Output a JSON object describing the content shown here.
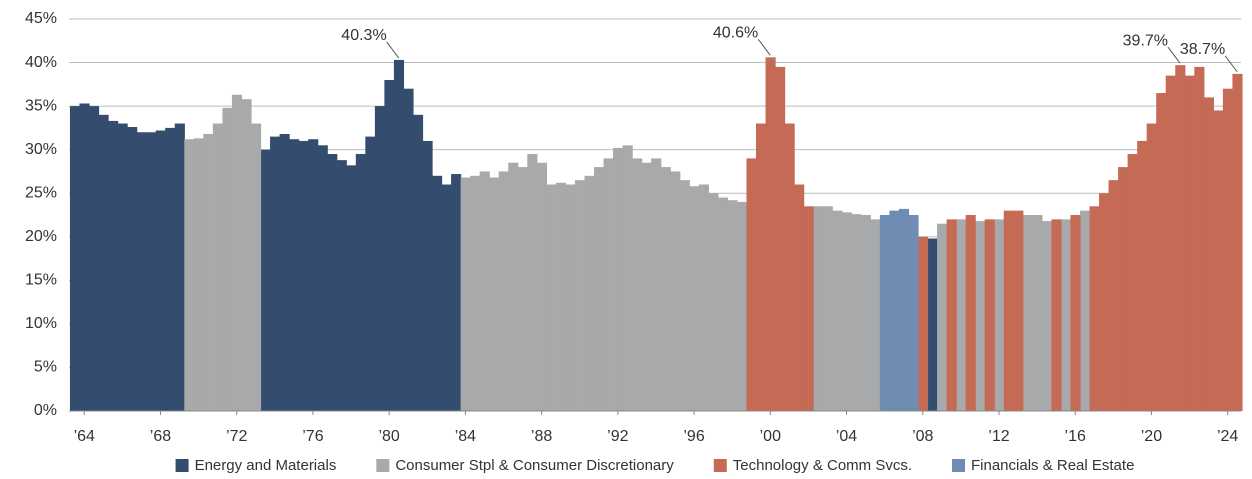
{
  "chart_data": {
    "type": "bar",
    "x": [
      1963.5,
      1964,
      1964.5,
      1965,
      1965.5,
      1966,
      1966.5,
      1967,
      1967.5,
      1968,
      1968.5,
      1969,
      1969.5,
      1970,
      1970.5,
      1971,
      1971.5,
      1972,
      1972.5,
      1973,
      1973.5,
      1974,
      1974.5,
      1975,
      1975.5,
      1976,
      1976.5,
      1977,
      1977.5,
      1978,
      1978.5,
      1979,
      1979.5,
      1980,
      1980.5,
      1981,
      1981.5,
      1982,
      1982.5,
      1983,
      1983.5,
      1984,
      1984.5,
      1985,
      1985.5,
      1986,
      1986.5,
      1987,
      1987.5,
      1988,
      1988.5,
      1989,
      1989.5,
      1990,
      1990.5,
      1991,
      1991.5,
      1992,
      1992.5,
      1993,
      1993.5,
      1994,
      1994.5,
      1995,
      1995.5,
      1996,
      1996.5,
      1997,
      1997.5,
      1998,
      1998.5,
      1999,
      1999.5,
      2000,
      2000.5,
      2001,
      2001.5,
      2002,
      2002.5,
      2003,
      2003.5,
      2004,
      2004.5,
      2005,
      2005.5,
      2006,
      2006.5,
      2007,
      2007.5,
      2008,
      2008.5,
      2009,
      2009.5,
      2010,
      2010.5,
      2011,
      2011.5,
      2012,
      2012.5,
      2013,
      2013.5,
      2014,
      2014.5,
      2015,
      2015.5,
      2016,
      2016.5,
      2017,
      2017.5,
      2018,
      2018.5,
      2019,
      2019.5,
      2020,
      2020.5,
      2021,
      2021.5,
      2022,
      2022.5,
      2023,
      2023.5,
      2024,
      2024.5
    ],
    "series": [
      {
        "name": "Energy and Materials",
        "color": "#344d6e",
        "values": [
          35,
          35.3,
          35,
          34,
          33.3,
          33,
          32.6,
          32,
          32,
          32.2,
          32.5,
          33,
          null,
          null,
          null,
          null,
          null,
          null,
          null,
          null,
          30,
          31.5,
          31.8,
          31.2,
          31,
          31.2,
          30.5,
          29.5,
          28.8,
          28.2,
          29.5,
          31.5,
          35,
          38,
          40.3,
          37,
          34,
          31,
          27,
          26,
          27.2,
          null,
          null,
          null,
          null,
          null,
          null,
          null,
          null,
          null,
          null,
          null,
          null,
          null,
          null,
          null,
          null,
          null,
          null,
          null,
          null,
          null,
          null,
          null,
          null,
          null,
          null,
          null,
          null,
          null,
          null,
          null,
          null,
          null,
          null,
          null,
          null,
          null,
          null,
          null,
          null,
          null,
          null,
          null,
          null,
          null,
          null,
          null,
          null,
          null,
          19.8,
          null,
          null,
          null,
          null,
          null,
          null,
          null,
          null,
          null,
          null,
          null,
          null,
          null,
          null,
          null,
          null,
          null,
          null,
          null,
          null,
          null,
          null,
          null,
          null,
          null,
          null,
          null,
          null,
          null,
          null,
          null,
          null
        ],
        "value_labels": [
          null,
          null,
          null,
          null,
          null,
          null,
          null,
          null,
          null,
          null,
          null,
          null,
          null,
          null,
          null,
          null,
          null,
          null,
          null,
          null,
          null,
          null,
          null,
          null,
          null,
          null,
          null,
          null,
          null,
          null,
          null,
          null,
          null,
          null,
          "40.3%",
          null,
          null,
          null,
          null,
          null,
          null,
          null,
          null,
          null,
          null,
          null,
          null,
          null,
          null,
          null,
          null,
          null,
          null,
          null,
          null,
          null,
          null,
          null,
          null,
          null,
          null,
          null,
          null,
          null,
          null,
          null,
          null,
          null,
          null,
          null,
          null,
          null,
          null,
          null,
          null,
          null,
          null,
          null,
          null,
          null,
          null,
          null,
          null,
          null,
          null,
          null,
          null,
          null,
          null,
          null,
          null,
          null,
          null,
          null,
          null,
          null,
          null,
          null,
          null,
          null,
          null,
          null,
          null,
          null,
          null,
          null,
          null,
          null,
          null,
          null,
          null,
          null,
          null,
          null,
          null,
          null,
          null,
          null,
          null,
          null,
          null,
          null,
          null
        ]
      },
      {
        "name": "Consumer Stpl & Consumer Discretionary",
        "color": "#a8a9ab",
        "values": [
          null,
          null,
          null,
          null,
          null,
          null,
          null,
          null,
          null,
          null,
          null,
          null,
          31.2,
          31.3,
          31.8,
          33,
          34.8,
          36.3,
          35.8,
          33,
          null,
          null,
          null,
          null,
          null,
          null,
          null,
          null,
          null,
          null,
          null,
          null,
          null,
          null,
          null,
          null,
          null,
          null,
          null,
          null,
          null,
          26.8,
          27,
          27.5,
          26.8,
          27.5,
          28.5,
          28,
          29.5,
          28.5,
          26,
          26.2,
          26,
          26.5,
          27,
          28,
          29,
          30.2,
          30.5,
          29,
          28.5,
          29,
          28,
          27.5,
          26.5,
          25.8,
          26,
          25,
          24.5,
          24.2,
          24,
          null,
          null,
          null,
          null,
          null,
          null,
          null,
          23.5,
          23.5,
          23,
          22.8,
          22.6,
          22.5,
          22,
          null,
          null,
          null,
          null,
          null,
          null,
          21.5,
          null,
          22,
          null,
          21.8,
          null,
          22,
          null,
          null,
          22.5,
          22.5,
          21.8,
          null,
          22,
          null,
          23,
          null,
          null,
          null,
          null,
          null,
          null,
          null,
          null,
          null,
          null,
          null,
          null,
          null,
          null,
          null,
          null
        ]
      },
      {
        "name": "Technology & Comm Svcs.",
        "color": "#c56a55",
        "values": [
          null,
          null,
          null,
          null,
          null,
          null,
          null,
          null,
          null,
          null,
          null,
          null,
          null,
          null,
          null,
          null,
          null,
          null,
          null,
          null,
          null,
          null,
          null,
          null,
          null,
          null,
          null,
          null,
          null,
          null,
          null,
          null,
          null,
          null,
          null,
          null,
          null,
          null,
          null,
          null,
          null,
          null,
          null,
          null,
          null,
          null,
          null,
          null,
          null,
          null,
          null,
          null,
          null,
          null,
          null,
          null,
          null,
          null,
          null,
          null,
          null,
          null,
          null,
          null,
          null,
          null,
          null,
          null,
          null,
          null,
          null,
          29,
          33,
          40.6,
          39.5,
          33,
          26,
          23.5,
          null,
          null,
          null,
          null,
          null,
          null,
          null,
          null,
          null,
          null,
          null,
          20,
          null,
          null,
          22,
          null,
          22.5,
          null,
          22,
          null,
          23,
          23,
          null,
          null,
          null,
          22,
          null,
          22.5,
          null,
          23.5,
          25,
          26.5,
          28,
          29.5,
          31,
          33,
          36.5,
          38.5,
          39.7,
          38.5,
          39.5,
          36,
          34.5,
          37,
          38.7
        ],
        "value_labels": [
          null,
          null,
          null,
          null,
          null,
          null,
          null,
          null,
          null,
          null,
          null,
          null,
          null,
          null,
          null,
          null,
          null,
          null,
          null,
          null,
          null,
          null,
          null,
          null,
          null,
          null,
          null,
          null,
          null,
          null,
          null,
          null,
          null,
          null,
          null,
          null,
          null,
          null,
          null,
          null,
          null,
          null,
          null,
          null,
          null,
          null,
          null,
          null,
          null,
          null,
          null,
          null,
          null,
          null,
          null,
          null,
          null,
          null,
          null,
          null,
          null,
          null,
          null,
          null,
          null,
          null,
          null,
          null,
          null,
          null,
          null,
          null,
          null,
          "40.6%",
          null,
          null,
          null,
          null,
          null,
          null,
          null,
          null,
          null,
          null,
          null,
          null,
          null,
          null,
          null,
          null,
          null,
          null,
          null,
          null,
          null,
          null,
          null,
          null,
          null,
          null,
          null,
          null,
          null,
          null,
          null,
          null,
          null,
          null,
          null,
          null,
          null,
          null,
          null,
          null,
          null,
          null,
          "39.7%",
          null,
          null,
          null,
          null,
          null,
          "38.7%"
        ]
      },
      {
        "name": "Financials & Real Estate",
        "color": "#6f8db3",
        "values": [
          null,
          null,
          null,
          null,
          null,
          null,
          null,
          null,
          null,
          null,
          null,
          null,
          null,
          null,
          null,
          null,
          null,
          null,
          null,
          null,
          null,
          null,
          null,
          null,
          null,
          null,
          null,
          null,
          null,
          null,
          null,
          null,
          null,
          null,
          null,
          null,
          null,
          null,
          null,
          null,
          null,
          null,
          null,
          null,
          null,
          null,
          null,
          null,
          null,
          null,
          null,
          null,
          null,
          null,
          null,
          null,
          null,
          null,
          null,
          null,
          null,
          null,
          null,
          null,
          null,
          null,
          null,
          null,
          null,
          null,
          null,
          null,
          null,
          null,
          null,
          null,
          null,
          null,
          null,
          null,
          null,
          null,
          null,
          null,
          null,
          22.5,
          23,
          23.2,
          22.5,
          null,
          null,
          null,
          null,
          null,
          null,
          null,
          null,
          null,
          null,
          null,
          null,
          null,
          null,
          null,
          null,
          null,
          null,
          null,
          null,
          null,
          null,
          null,
          null,
          null,
          null,
          null,
          null,
          null,
          null,
          null,
          null,
          null,
          null
        ]
      }
    ],
    "xlim": [
      1963.2,
      2024.7
    ],
    "xticks": [
      {
        "value": 1964,
        "label": "’64"
      },
      {
        "value": 1968,
        "label": "’68"
      },
      {
        "value": 1972,
        "label": "’72"
      },
      {
        "value": 1976,
        "label": "’76"
      },
      {
        "value": 1980,
        "label": "’80"
      },
      {
        "value": 1984,
        "label": "’84"
      },
      {
        "value": 1988,
        "label": "’88"
      },
      {
        "value": 1992,
        "label": "’92"
      },
      {
        "value": 1996,
        "label": "’96"
      },
      {
        "value": 2000,
        "label": "’00"
      },
      {
        "value": 2004,
        "label": "’04"
      },
      {
        "value": 2008,
        "label": "’08"
      },
      {
        "value": 2012,
        "label": "’12"
      },
      {
        "value": 2016,
        "label": "’16"
      },
      {
        "value": 2020,
        "label": "’20"
      },
      {
        "value": 2024,
        "label": "’24"
      }
    ],
    "ylim": [
      0,
      45
    ],
    "yticks": [
      {
        "value": 0,
        "label": "0%"
      },
      {
        "value": 5,
        "label": "5%"
      },
      {
        "value": 10,
        "label": "10%"
      },
      {
        "value": 15,
        "label": "15%"
      },
      {
        "value": 20,
        "label": "20%"
      },
      {
        "value": 25,
        "label": "25%"
      },
      {
        "value": 30,
        "label": "30%"
      },
      {
        "value": 35,
        "label": "35%"
      },
      {
        "value": 40,
        "label": "40%"
      },
      {
        "value": 45,
        "label": "45%"
      }
    ],
    "grid": true,
    "legend": "bottom"
  }
}
